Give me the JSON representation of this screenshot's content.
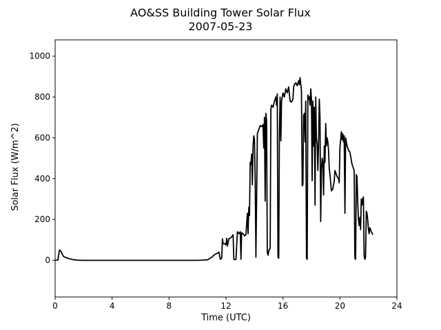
{
  "chart_data": {
    "type": "line",
    "title": "AO&SS Building Tower Solar Flux",
    "subtitle": "2007-05-23",
    "xlabel": "Time (UTC)",
    "ylabel": "Solar Flux (W/m^2)",
    "xlim": [
      0,
      24
    ],
    "ylim": [
      -180,
      1080
    ],
    "xticks": [
      0,
      4,
      8,
      12,
      16,
      20,
      24
    ],
    "yticks": [
      0,
      200,
      400,
      600,
      800,
      1000
    ],
    "grid": false,
    "line_color": "#000000",
    "series": [
      {
        "points": [
          [
            0.0,
            0
          ],
          [
            0.2,
            2
          ],
          [
            0.3,
            50
          ],
          [
            0.4,
            45
          ],
          [
            0.5,
            30
          ],
          [
            0.6,
            18
          ],
          [
            0.8,
            12
          ],
          [
            1.0,
            8
          ],
          [
            1.2,
            4
          ],
          [
            1.5,
            1
          ],
          [
            2.0,
            0
          ],
          [
            4.0,
            0
          ],
          [
            6.0,
            0
          ],
          [
            8.0,
            0
          ],
          [
            10.0,
            0
          ],
          [
            10.7,
            2
          ],
          [
            11.0,
            15
          ],
          [
            11.2,
            28
          ],
          [
            11.4,
            35
          ],
          [
            11.5,
            40
          ],
          [
            11.6,
            5
          ],
          [
            11.7,
            10
          ],
          [
            11.75,
            105
          ],
          [
            11.8,
            80
          ],
          [
            11.9,
            82
          ],
          [
            12.0,
            75
          ],
          [
            12.05,
            108
          ],
          [
            12.1,
            70
          ],
          [
            12.2,
            105
          ],
          [
            12.3,
            108
          ],
          [
            12.4,
            115
          ],
          [
            12.5,
            125
          ],
          [
            12.55,
            5
          ],
          [
            12.6,
            3
          ],
          [
            12.7,
            5
          ],
          [
            12.8,
            140
          ],
          [
            12.9,
            130
          ],
          [
            13.0,
            140
          ],
          [
            13.05,
            5
          ],
          [
            13.1,
            135
          ],
          [
            13.2,
            130
          ],
          [
            13.3,
            120
          ],
          [
            13.4,
            125
          ],
          [
            13.5,
            230
          ],
          [
            13.55,
            130
          ],
          [
            13.6,
            260
          ],
          [
            13.65,
            220
          ],
          [
            13.7,
            480
          ],
          [
            13.75,
            470
          ],
          [
            13.8,
            520
          ],
          [
            13.85,
            370
          ],
          [
            13.9,
            560
          ],
          [
            13.95,
            610
          ],
          [
            14.0,
            590
          ],
          [
            14.05,
            380
          ],
          [
            14.1,
            15
          ],
          [
            14.15,
            300
          ],
          [
            14.2,
            620
          ],
          [
            14.3,
            640
          ],
          [
            14.4,
            660
          ],
          [
            14.5,
            655
          ],
          [
            14.6,
            665
          ],
          [
            14.65,
            550
          ],
          [
            14.7,
            700
          ],
          [
            14.75,
            290
          ],
          [
            14.8,
            720
          ],
          [
            14.85,
            680
          ],
          [
            14.9,
            40
          ],
          [
            14.95,
            25
          ],
          [
            15.0,
            45
          ],
          [
            15.1,
            60
          ],
          [
            15.15,
            740
          ],
          [
            15.2,
            760
          ],
          [
            15.3,
            750
          ],
          [
            15.4,
            780
          ],
          [
            15.5,
            800
          ],
          [
            15.55,
            760
          ],
          [
            15.6,
            815
          ],
          [
            15.65,
            15
          ],
          [
            15.7,
            10
          ],
          [
            15.75,
            620
          ],
          [
            15.8,
            800
          ],
          [
            15.85,
            585
          ],
          [
            15.9,
            780
          ],
          [
            16.0,
            820
          ],
          [
            16.1,
            800
          ],
          [
            16.2,
            840
          ],
          [
            16.3,
            820
          ],
          [
            16.4,
            850
          ],
          [
            16.5,
            780
          ],
          [
            16.6,
            775
          ],
          [
            16.7,
            790
          ],
          [
            16.75,
            850
          ],
          [
            16.8,
            860
          ],
          [
            16.9,
            870
          ],
          [
            17.0,
            855
          ],
          [
            17.1,
            880
          ],
          [
            17.15,
            860
          ],
          [
            17.2,
            895
          ],
          [
            17.3,
            830
          ],
          [
            17.35,
            365
          ],
          [
            17.4,
            370
          ],
          [
            17.45,
            710
          ],
          [
            17.5,
            720
          ],
          [
            17.55,
            580
          ],
          [
            17.6,
            780
          ],
          [
            17.65,
            10
          ],
          [
            17.7,
            5
          ],
          [
            17.75,
            810
          ],
          [
            17.8,
            790
          ],
          [
            17.85,
            800
          ],
          [
            17.9,
            760
          ],
          [
            17.95,
            840
          ],
          [
            18.0,
            790
          ],
          [
            18.05,
            390
          ],
          [
            18.1,
            780
          ],
          [
            18.15,
            560
          ],
          [
            18.2,
            750
          ],
          [
            18.25,
            270
          ],
          [
            18.3,
            800
          ],
          [
            18.35,
            600
          ],
          [
            18.4,
            570
          ],
          [
            18.45,
            440
          ],
          [
            18.5,
            560
          ],
          [
            18.55,
            790
          ],
          [
            18.6,
            700
          ],
          [
            18.65,
            190
          ],
          [
            18.7,
            450
          ],
          [
            18.75,
            500
          ],
          [
            18.8,
            480
          ],
          [
            18.85,
            320
          ],
          [
            18.9,
            560
          ],
          [
            18.95,
            480
          ],
          [
            19.0,
            670
          ],
          [
            19.05,
            560
          ],
          [
            19.1,
            600
          ],
          [
            19.15,
            580
          ],
          [
            19.2,
            540
          ],
          [
            19.25,
            450
          ],
          [
            19.3,
            420
          ],
          [
            19.35,
            380
          ],
          [
            19.4,
            340
          ],
          [
            19.5,
            350
          ],
          [
            19.6,
            390
          ],
          [
            19.65,
            440
          ],
          [
            19.7,
            430
          ],
          [
            19.8,
            410
          ],
          [
            19.9,
            400
          ],
          [
            19.95,
            380
          ],
          [
            20.0,
            550
          ],
          [
            20.1,
            630
          ],
          [
            20.15,
            590
          ],
          [
            20.2,
            620
          ],
          [
            20.25,
            580
          ],
          [
            20.3,
            610
          ],
          [
            20.35,
            230
          ],
          [
            20.4,
            600
          ],
          [
            20.45,
            580
          ],
          [
            20.5,
            560
          ],
          [
            20.6,
            540
          ],
          [
            20.7,
            530
          ],
          [
            20.8,
            490
          ],
          [
            20.85,
            470
          ],
          [
            20.9,
            460
          ],
          [
            21.0,
            440
          ],
          [
            21.05,
            10
          ],
          [
            21.1,
            5
          ],
          [
            21.15,
            420
          ],
          [
            21.2,
            410
          ],
          [
            21.25,
            280
          ],
          [
            21.3,
            200
          ],
          [
            21.35,
            170
          ],
          [
            21.4,
            210
          ],
          [
            21.45,
            150
          ],
          [
            21.5,
            300
          ],
          [
            21.55,
            270
          ],
          [
            21.6,
            300
          ],
          [
            21.65,
            310
          ],
          [
            21.7,
            20
          ],
          [
            21.75,
            5
          ],
          [
            21.8,
            15
          ],
          [
            21.85,
            240
          ],
          [
            21.9,
            230
          ],
          [
            21.95,
            200
          ],
          [
            22.0,
            150
          ],
          [
            22.05,
            130
          ],
          [
            22.1,
            160
          ],
          [
            22.15,
            150
          ],
          [
            22.2,
            140
          ],
          [
            22.25,
            135
          ],
          [
            22.3,
            125
          ]
        ]
      }
    ]
  }
}
